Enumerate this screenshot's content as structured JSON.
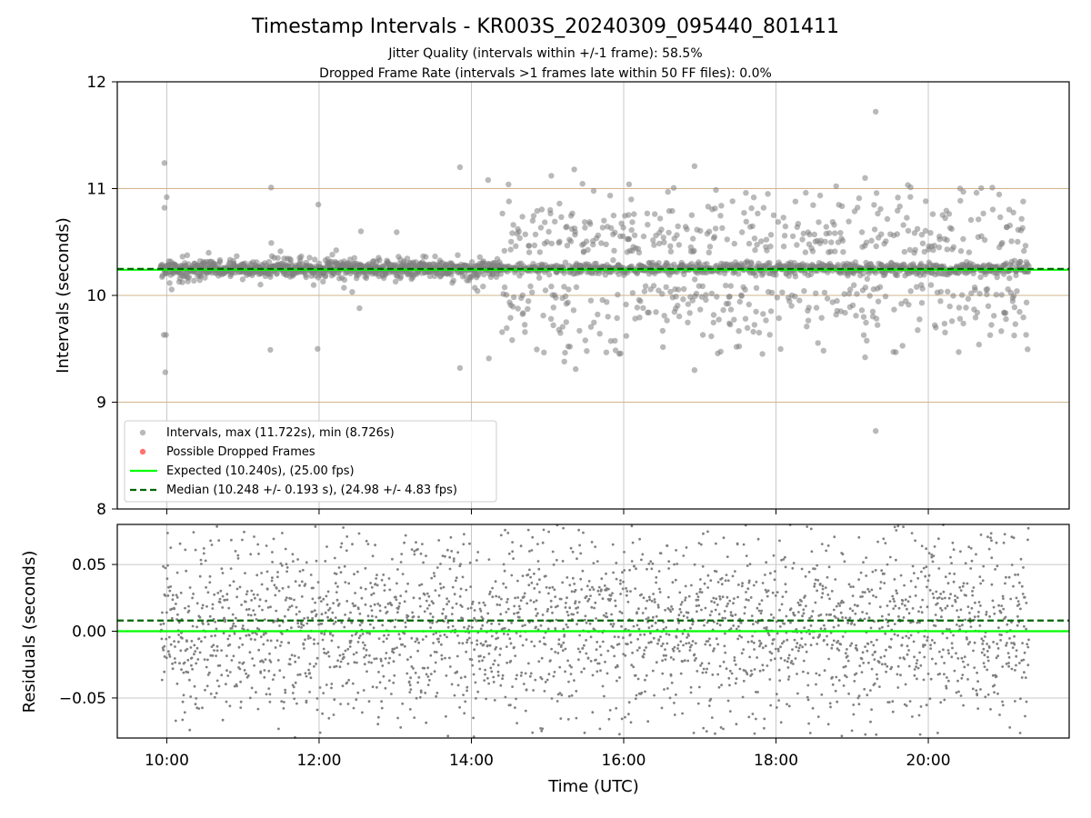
{
  "figure": {
    "title": "Timestamp Intervals - KR003S_20240309_095440_801411",
    "subtitle_1": "Jitter Quality (intervals within +/-1 frame): 58.5%",
    "subtitle_2": "Dropped Frame Rate (intervals >1 frames late within 50 FF files): 0.0%"
  },
  "colors": {
    "points": "#808080",
    "dropped": "#ff0000",
    "expected": "#00ff00",
    "median": "#006400",
    "frame_band": "#d2b48c",
    "grid": "#c8c8c8"
  },
  "chart_data": [
    {
      "type": "scatter",
      "panel": "intervals",
      "ylabel": "Intervals (seconds)",
      "xlim_hours": [
        9.35,
        21.85
      ],
      "ylim": [
        8,
        12
      ],
      "y_ticks": [
        "8",
        "9",
        "10",
        "11",
        "12"
      ],
      "x_ticks_hours": [
        10,
        12,
        14,
        16,
        18,
        20
      ],
      "grid": "vertical",
      "frame_band_lines": [
        9.0,
        10.0,
        11.0
      ],
      "legend": {
        "placement": "lower-left",
        "entries": [
          "Intervals, max (11.722s), min (8.726s)",
          "Possible Dropped Frames",
          "Expected (10.240s), (25.00 fps)",
          "Median (10.248 +/- 0.193 s), (24.98 +/- 4.83 fps)"
        ]
      },
      "expected": 10.24,
      "median": 10.248,
      "series_stats": {
        "max": 11.722,
        "min": 8.726,
        "time_start_hours": 9.92,
        "time_end_hours": 21.32
      },
      "outliers": [
        [
          9.97,
          11.24
        ],
        [
          9.97,
          10.82
        ],
        [
          10.0,
          10.92
        ],
        [
          9.96,
          9.63
        ],
        [
          9.99,
          9.63
        ],
        [
          9.98,
          9.28
        ],
        [
          11.37,
          11.01
        ],
        [
          11.36,
          9.49
        ],
        [
          11.99,
          10.85
        ],
        [
          11.98,
          9.5
        ],
        [
          12.55,
          10.6
        ],
        [
          12.53,
          9.88
        ],
        [
          13.85,
          11.2
        ],
        [
          13.85,
          9.32
        ],
        [
          14.22,
          11.08
        ],
        [
          14.23,
          9.41
        ],
        [
          15.05,
          11.12
        ],
        [
          15.22,
          9.38
        ],
        [
          15.35,
          11.18
        ],
        [
          15.37,
          9.31
        ],
        [
          16.07,
          11.04
        ],
        [
          16.93,
          11.21
        ],
        [
          16.93,
          9.3
        ],
        [
          19.31,
          11.72
        ],
        [
          19.31,
          8.73
        ],
        [
          19.17,
          11.1
        ],
        [
          19.17,
          9.42
        ],
        [
          20.46,
          10.97
        ],
        [
          20.4,
          9.47
        ]
      ]
    },
    {
      "type": "scatter",
      "panel": "residuals",
      "xlabel": "Time (UTC)",
      "ylabel": "Residuals (seconds)",
      "xlim_hours": [
        9.35,
        21.85
      ],
      "ylim": [
        -0.08,
        0.08
      ],
      "y_ticks": [
        "−0.05",
        "0.00",
        "0.05"
      ],
      "y_tick_values": [
        -0.05,
        0.0,
        0.05
      ],
      "x_tick_labels": [
        "10:00",
        "12:00",
        "14:00",
        "16:00",
        "18:00",
        "20:00"
      ],
      "x_ticks_hours": [
        10,
        12,
        14,
        16,
        18,
        20
      ],
      "grid": "both",
      "expected_residual": 0.0,
      "median_residual": 0.008,
      "residual_spread": 0.075
    }
  ]
}
